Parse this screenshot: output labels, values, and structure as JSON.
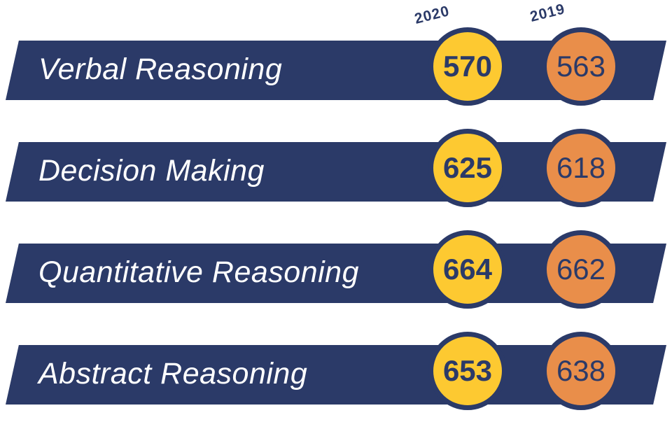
{
  "chart_data": {
    "type": "table",
    "series": [
      {
        "name": "2020",
        "color": "#fdc931"
      },
      {
        "name": "2019",
        "color": "#e98e4a"
      }
    ],
    "band_color": "#2b3a68",
    "rows": [
      {
        "label": "Verbal Reasoning",
        "v2020": "570",
        "v2019": "563"
      },
      {
        "label": "Decision Making",
        "v2020": "625",
        "v2019": "618"
      },
      {
        "label": "Quantitative Reasoning",
        "v2020": "664",
        "v2019": "662"
      },
      {
        "label": "Abstract Reasoning",
        "v2020": "653",
        "v2019": "638"
      }
    ]
  }
}
